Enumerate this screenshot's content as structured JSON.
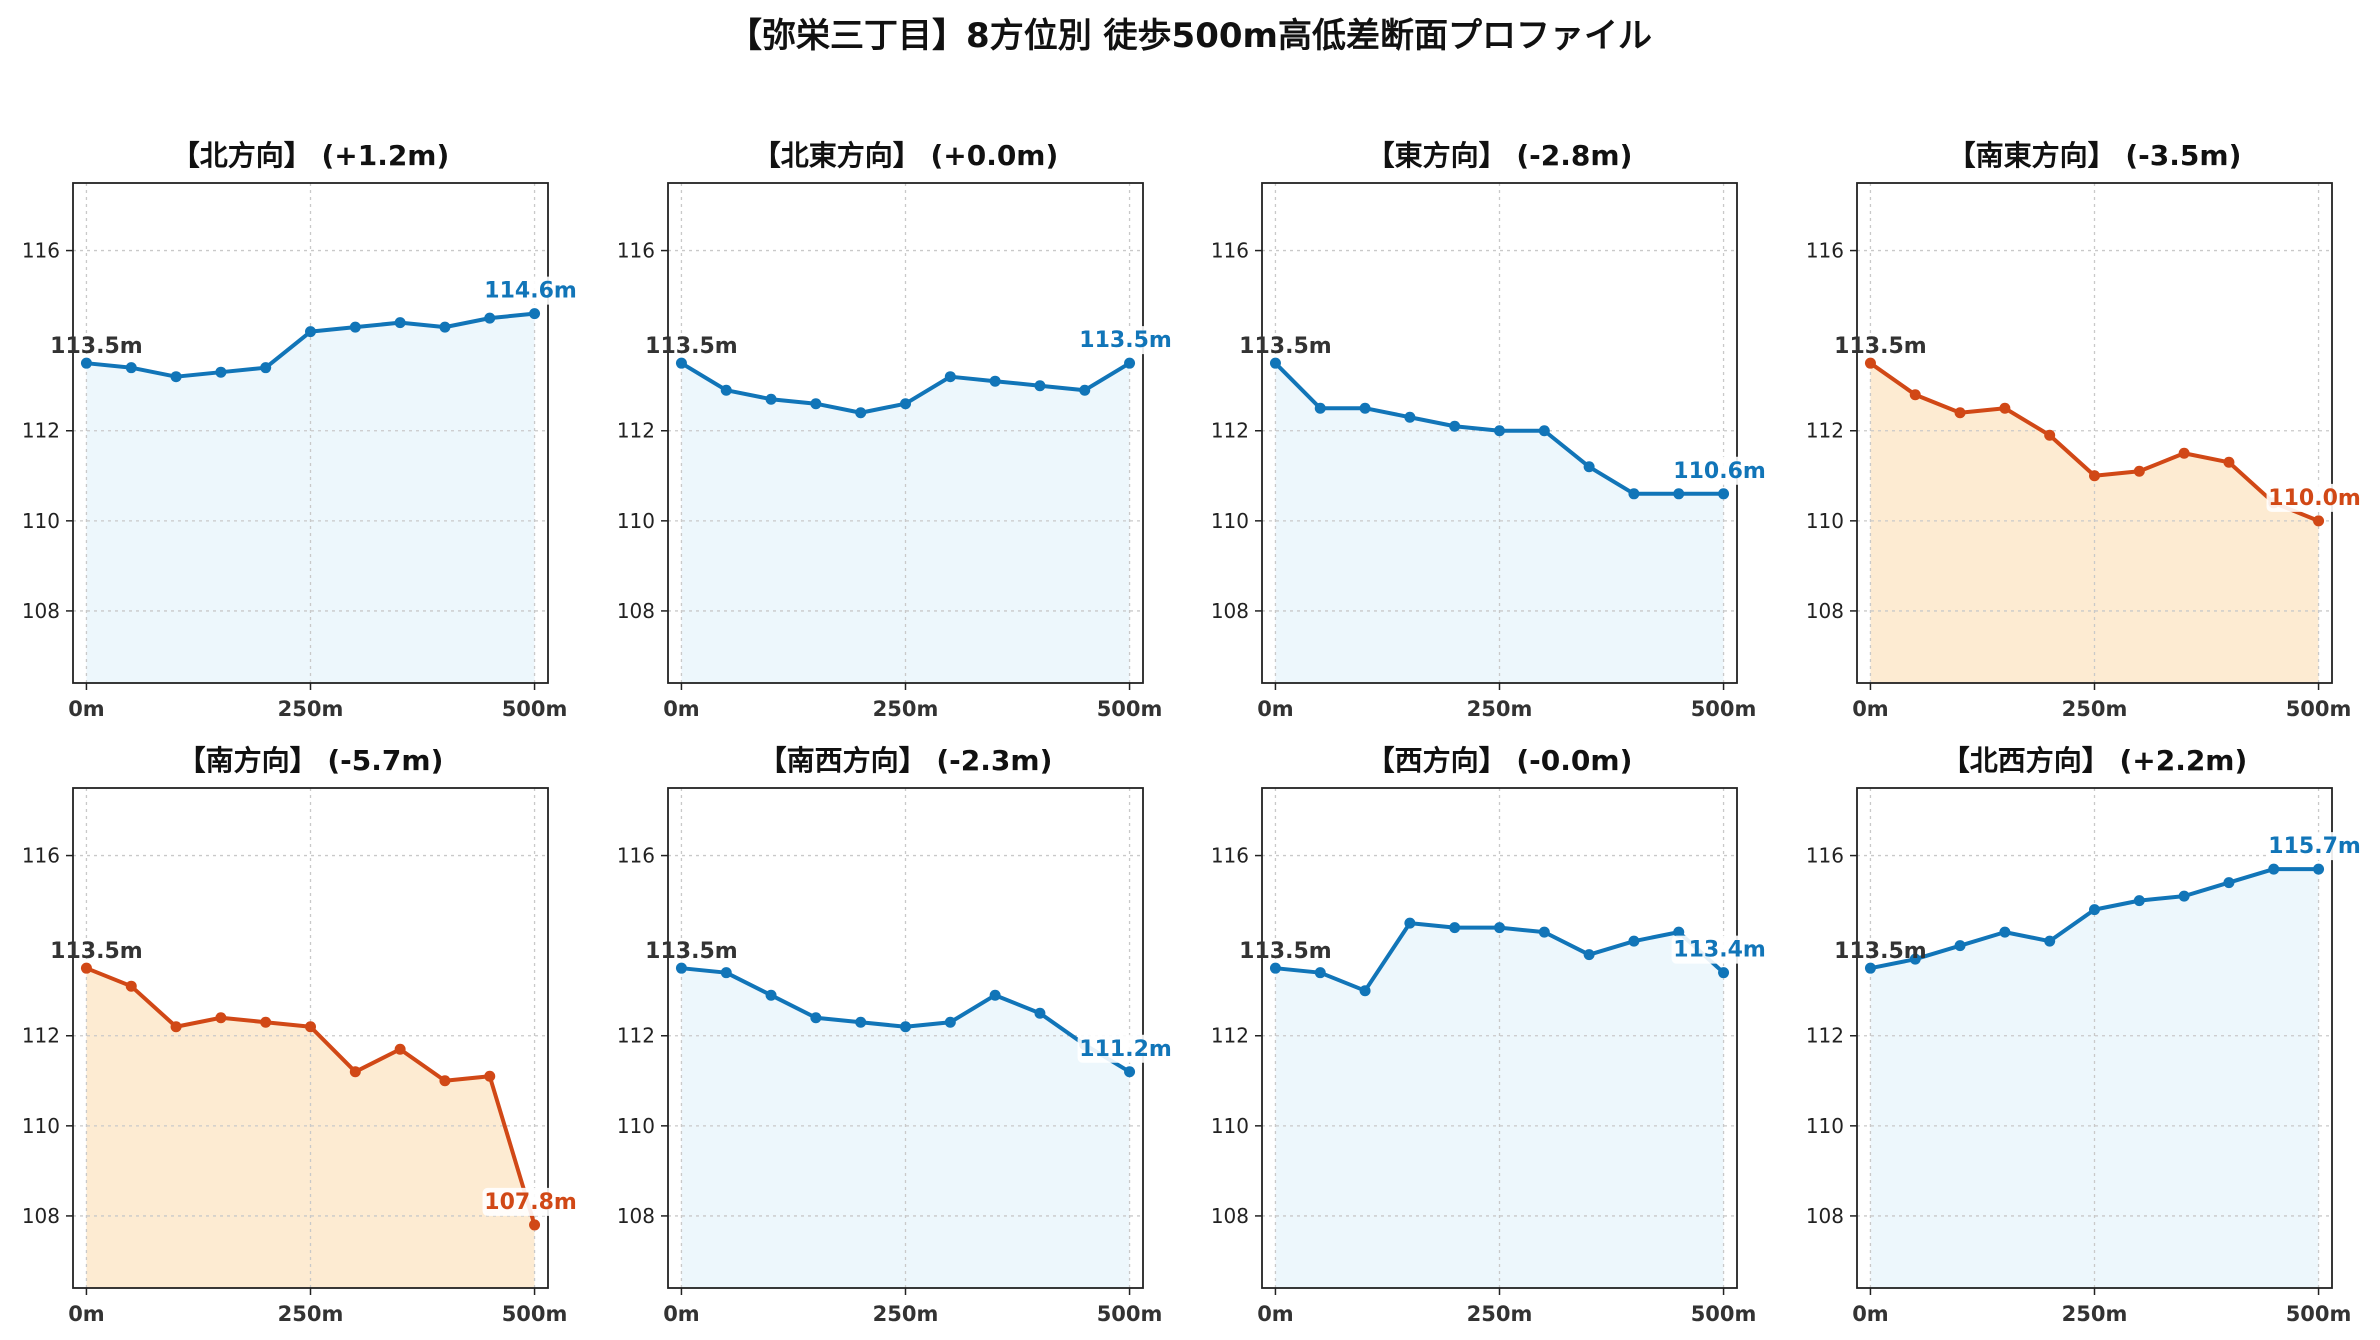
{
  "figure": {
    "title": "【弥栄三丁目】8方位別 徒歩500m高低差断面プロファイル"
  },
  "colors": {
    "up_line": "#1175b8",
    "up_fill": "#edf7fc",
    "down_line": "#d14816",
    "down_fill": "#fdebd2",
    "start_label": "#333333"
  },
  "chart_data": [
    {
      "type": "area",
      "title": "【北方向】 (+1.2m)",
      "trend": "up",
      "x": [
        0,
        50,
        100,
        150,
        200,
        250,
        300,
        350,
        400,
        450,
        500
      ],
      "values": [
        113.5,
        113.4,
        113.2,
        113.3,
        113.4,
        114.2,
        114.3,
        114.4,
        114.3,
        114.5,
        114.6
      ],
      "start_label": "113.5m",
      "end_label": "114.6m",
      "x_ticks": [
        "0m",
        "250m",
        "500m"
      ],
      "y_ticks": [
        "108",
        "110",
        "112",
        "116"
      ],
      "ylim": [
        106.4,
        117.5
      ],
      "xlim": [
        -15,
        515
      ],
      "grid": true
    },
    {
      "type": "area",
      "title": "【北東方向】 (+0.0m)",
      "trend": "up",
      "x": [
        0,
        50,
        100,
        150,
        200,
        250,
        300,
        350,
        400,
        450,
        500
      ],
      "values": [
        113.5,
        112.9,
        112.7,
        112.6,
        112.4,
        112.6,
        113.2,
        113.1,
        113.0,
        112.9,
        113.5
      ],
      "start_label": "113.5m",
      "end_label": "113.5m",
      "x_ticks": [
        "0m",
        "250m",
        "500m"
      ],
      "y_ticks": [
        "108",
        "110",
        "112",
        "116"
      ],
      "ylim": [
        106.4,
        117.5
      ],
      "xlim": [
        -15,
        515
      ],
      "grid": true
    },
    {
      "type": "area",
      "title": "【東方向】 (-2.8m)",
      "trend": "up",
      "x": [
        0,
        50,
        100,
        150,
        200,
        250,
        300,
        350,
        400,
        450,
        500
      ],
      "values": [
        113.5,
        112.5,
        112.5,
        112.3,
        112.1,
        112.0,
        112.0,
        111.2,
        110.6,
        110.6,
        110.6
      ],
      "start_label": "113.5m",
      "end_label": "110.6m",
      "x_ticks": [
        "0m",
        "250m",
        "500m"
      ],
      "y_ticks": [
        "108",
        "110",
        "112",
        "116"
      ],
      "ylim": [
        106.4,
        117.5
      ],
      "xlim": [
        -15,
        515
      ],
      "grid": true
    },
    {
      "type": "area",
      "title": "【南東方向】 (-3.5m)",
      "trend": "down",
      "x": [
        0,
        50,
        100,
        150,
        200,
        250,
        300,
        350,
        400,
        450,
        500
      ],
      "values": [
        113.5,
        112.8,
        112.4,
        112.5,
        111.9,
        111.0,
        111.1,
        111.5,
        111.3,
        110.4,
        110.0
      ],
      "start_label": "113.5m",
      "end_label": "110.0m",
      "x_ticks": [
        "0m",
        "250m",
        "500m"
      ],
      "y_ticks": [
        "108",
        "110",
        "112",
        "116"
      ],
      "ylim": [
        106.4,
        117.5
      ],
      "xlim": [
        -15,
        515
      ],
      "grid": true
    },
    {
      "type": "area",
      "title": "【南方向】 (-5.7m)",
      "trend": "down",
      "x": [
        0,
        50,
        100,
        150,
        200,
        250,
        300,
        350,
        400,
        450,
        500
      ],
      "values": [
        113.5,
        113.1,
        112.2,
        112.4,
        112.3,
        112.2,
        111.2,
        111.7,
        111.0,
        111.1,
        107.8
      ],
      "start_label": "113.5m",
      "end_label": "107.8m",
      "x_ticks": [
        "0m",
        "250m",
        "500m"
      ],
      "y_ticks": [
        "108",
        "110",
        "112",
        "116"
      ],
      "ylim": [
        106.4,
        117.5
      ],
      "xlim": [
        -15,
        515
      ],
      "grid": true
    },
    {
      "type": "area",
      "title": "【南西方向】 (-2.3m)",
      "trend": "up",
      "x": [
        0,
        50,
        100,
        150,
        200,
        250,
        300,
        350,
        400,
        450,
        500
      ],
      "values": [
        113.5,
        113.4,
        112.9,
        112.4,
        112.3,
        112.2,
        112.3,
        112.9,
        112.5,
        111.8,
        111.2
      ],
      "start_label": "113.5m",
      "end_label": "111.2m",
      "x_ticks": [
        "0m",
        "250m",
        "500m"
      ],
      "y_ticks": [
        "108",
        "110",
        "112",
        "116"
      ],
      "ylim": [
        106.4,
        117.5
      ],
      "xlim": [
        -15,
        515
      ],
      "grid": true
    },
    {
      "type": "area",
      "title": "【西方向】 (-0.0m)",
      "trend": "up",
      "x": [
        0,
        50,
        100,
        150,
        200,
        250,
        300,
        350,
        400,
        450,
        500
      ],
      "values": [
        113.5,
        113.4,
        113.0,
        114.5,
        114.4,
        114.4,
        114.3,
        113.8,
        114.1,
        114.3,
        113.4
      ],
      "start_label": "113.5m",
      "end_label": "113.4m",
      "x_ticks": [
        "0m",
        "250m",
        "500m"
      ],
      "y_ticks": [
        "108",
        "110",
        "112",
        "116"
      ],
      "ylim": [
        106.4,
        117.5
      ],
      "xlim": [
        -15,
        515
      ],
      "grid": true
    },
    {
      "type": "area",
      "title": "【北西方向】 (+2.2m)",
      "trend": "up",
      "x": [
        0,
        50,
        100,
        150,
        200,
        250,
        300,
        350,
        400,
        450,
        500
      ],
      "values": [
        113.5,
        113.7,
        114.0,
        114.3,
        114.1,
        114.8,
        115.0,
        115.1,
        115.4,
        115.7,
        115.7
      ],
      "start_label": "113.5m",
      "end_label": "115.7m",
      "x_ticks": [
        "0m",
        "250m",
        "500m"
      ],
      "y_ticks": [
        "108",
        "110",
        "112",
        "116"
      ],
      "ylim": [
        106.4,
        117.5
      ],
      "xlim": [
        -15,
        515
      ],
      "grid": true
    }
  ]
}
